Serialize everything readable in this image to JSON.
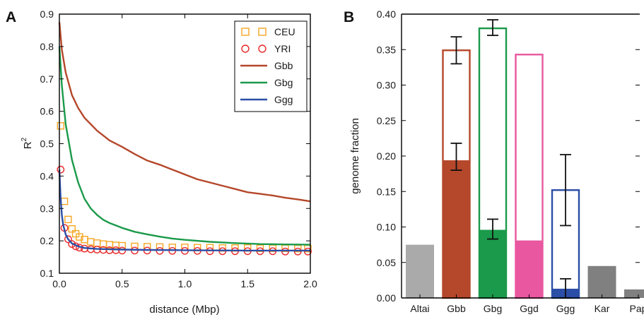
{
  "chart_data": [
    {
      "panel_label": "A",
      "type": "line",
      "xlabel": "distance (Mbp)",
      "ylabel": "R",
      "ylabel_sup": "2",
      "xlim": [
        0.0,
        2.0
      ],
      "ylim": [
        0.1,
        0.9
      ],
      "xticks": [
        "0.0",
        "0.5",
        "1.0",
        "1.5",
        "2.0"
      ],
      "yticks": [
        "0.1",
        "0.2",
        "0.3",
        "0.4",
        "0.5",
        "0.6",
        "0.7",
        "0.8",
        "0.9"
      ],
      "legend": "top-right",
      "series": [
        {
          "name": "CEU",
          "marker": "square",
          "color": "#f5a623",
          "x": [
            0.01,
            0.04,
            0.07,
            0.1,
            0.13,
            0.16,
            0.2,
            0.25,
            0.3,
            0.35,
            0.4,
            0.45,
            0.5,
            0.6,
            0.7,
            0.8,
            0.9,
            1.0,
            1.1,
            1.2,
            1.3,
            1.4,
            1.5,
            1.6,
            1.7,
            1.8,
            1.9,
            1.98
          ],
          "y": [
            0.555,
            0.322,
            0.266,
            0.237,
            0.222,
            0.212,
            0.204,
            0.197,
            0.193,
            0.19,
            0.188,
            0.186,
            0.185,
            0.183,
            0.182,
            0.181,
            0.18,
            0.18,
            0.179,
            0.179,
            0.178,
            0.178,
            0.178,
            0.177,
            0.177,
            0.177,
            0.176,
            0.176
          ]
        },
        {
          "name": "YRI",
          "marker": "circle",
          "color": "#e8282a",
          "x": [
            0.01,
            0.04,
            0.07,
            0.1,
            0.13,
            0.16,
            0.2,
            0.25,
            0.3,
            0.35,
            0.4,
            0.45,
            0.5,
            0.6,
            0.7,
            0.8,
            0.9,
            1.0,
            1.1,
            1.2,
            1.3,
            1.4,
            1.5,
            1.6,
            1.7,
            1.8,
            1.9,
            1.98
          ],
          "y": [
            0.42,
            0.24,
            0.205,
            0.19,
            0.183,
            0.179,
            0.176,
            0.174,
            0.173,
            0.172,
            0.171,
            0.171,
            0.17,
            0.17,
            0.17,
            0.169,
            0.169,
            0.169,
            0.169,
            0.168,
            0.168,
            0.168,
            0.168,
            0.168,
            0.168,
            0.167,
            0.167,
            0.167
          ]
        },
        {
          "name": "Gbb",
          "marker": "line",
          "color": "#b5472a",
          "x": [
            0.0,
            0.02,
            0.05,
            0.1,
            0.15,
            0.2,
            0.3,
            0.4,
            0.5,
            0.6,
            0.7,
            0.8,
            0.9,
            1.0,
            1.1,
            1.2,
            1.3,
            1.4,
            1.5,
            1.6,
            1.7,
            1.8,
            1.9,
            2.0
          ],
          "y": [
            0.875,
            0.79,
            0.72,
            0.65,
            0.61,
            0.58,
            0.54,
            0.51,
            0.49,
            0.468,
            0.448,
            0.435,
            0.42,
            0.405,
            0.39,
            0.38,
            0.37,
            0.36,
            0.35,
            0.345,
            0.34,
            0.333,
            0.328,
            0.322
          ]
        },
        {
          "name": "Gbg",
          "marker": "line",
          "color": "#1a9a4a",
          "x": [
            0.0,
            0.02,
            0.05,
            0.1,
            0.15,
            0.2,
            0.25,
            0.3,
            0.35,
            0.4,
            0.5,
            0.6,
            0.7,
            0.8,
            0.9,
            1.0,
            1.2,
            1.4,
            1.6,
            1.8,
            2.0
          ],
          "y": [
            0.8,
            0.68,
            0.56,
            0.45,
            0.38,
            0.33,
            0.3,
            0.28,
            0.265,
            0.255,
            0.24,
            0.228,
            0.22,
            0.213,
            0.207,
            0.203,
            0.197,
            0.193,
            0.19,
            0.189,
            0.188
          ]
        },
        {
          "name": "Ggg",
          "marker": "line",
          "color": "#2b4ea6",
          "x": [
            0.0,
            0.01,
            0.02,
            0.03,
            0.05,
            0.07,
            0.1,
            0.15,
            0.2,
            0.3,
            0.4,
            0.5,
            0.7,
            1.0,
            1.5,
            2.0
          ],
          "y": [
            0.42,
            0.33,
            0.28,
            0.25,
            0.22,
            0.205,
            0.192,
            0.183,
            0.178,
            0.175,
            0.174,
            0.173,
            0.172,
            0.171,
            0.17,
            0.17
          ]
        }
      ]
    },
    {
      "panel_label": "B",
      "type": "bar",
      "ylabel": "genome fraction",
      "ylim": [
        0.0,
        0.4
      ],
      "yticks": [
        "0.00",
        "0.05",
        "0.10",
        "0.15",
        "0.20",
        "0.25",
        "0.30",
        "0.35",
        "0.40"
      ],
      "categories": [
        "Altai",
        "Gbb",
        "Gbg",
        "Ggd",
        "Ggg",
        "Kar",
        "Pap"
      ],
      "colors": [
        "#aaaaaa",
        "#b5472a",
        "#1a9a4a",
        "#e8579f",
        "#2b4ea6",
        "#808080",
        "#808080"
      ],
      "filled": [
        0.075,
        0.194,
        0.096,
        0.081,
        0.013,
        0.045,
        0.012
      ],
      "outline": [
        null,
        0.349,
        0.38,
        0.343,
        0.152,
        null,
        null
      ],
      "filled_err": [
        null,
        [
          0.18,
          0.218
        ],
        [
          0.083,
          0.111
        ],
        null,
        [
          0.0,
          0.027
        ],
        null,
        null
      ],
      "outline_err": [
        null,
        [
          0.33,
          0.368
        ],
        [
          0.37,
          0.392
        ],
        null,
        [
          0.102,
          0.202
        ],
        null,
        null
      ]
    }
  ]
}
